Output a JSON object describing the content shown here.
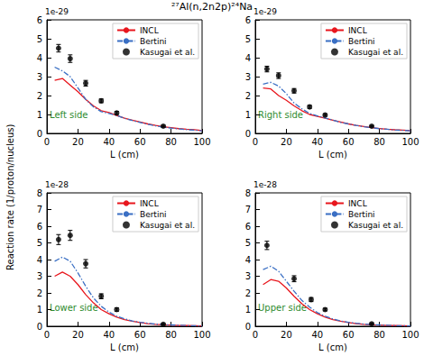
{
  "figure": {
    "title": "²⁷Al(n,2n2p)²⁴Na",
    "ylabel": "Reaction rate (1/proton/nucleus)"
  },
  "chart_data": [
    {
      "type": "line",
      "annotation": "Left side",
      "y_multiplier": "1e-29",
      "xlabel": "L (cm)",
      "xlim": [
        0,
        100
      ],
      "xticks": [
        0,
        20,
        40,
        60,
        80,
        100
      ],
      "ylim": [
        0,
        6
      ],
      "yticks": [
        0,
        1,
        2,
        3,
        4,
        5,
        6
      ],
      "legend": "upper right",
      "series": [
        {
          "name": "INCL",
          "color": "#e8161d",
          "line_style": "solid",
          "marker": "none",
          "x": [
            5,
            10,
            15,
            20,
            25,
            30,
            35,
            40,
            45,
            50,
            55,
            60,
            65,
            70,
            75,
            80,
            85,
            90,
            95,
            100
          ],
          "values": [
            2.8,
            2.9,
            2.55,
            2.2,
            1.8,
            1.45,
            1.2,
            1.1,
            0.95,
            0.8,
            0.7,
            0.6,
            0.5,
            0.42,
            0.35,
            0.3,
            0.25,
            0.22,
            0.2,
            0.15
          ]
        },
        {
          "name": "Bertini",
          "color": "#3a6fc4",
          "line_style": "dashdot",
          "marker": "none",
          "x": [
            5,
            10,
            15,
            20,
            25,
            30,
            35,
            40,
            45,
            50,
            55,
            60,
            65,
            70,
            75,
            80,
            85,
            90,
            95,
            100
          ],
          "values": [
            3.5,
            3.3,
            3.0,
            2.4,
            1.8,
            1.4,
            1.15,
            1.05,
            0.95,
            0.8,
            0.68,
            0.58,
            0.48,
            0.4,
            0.33,
            0.28,
            0.24,
            0.2,
            0.17,
            0.14
          ]
        },
        {
          "name": "Kasugai et al.",
          "color": "#000000",
          "line_style": "none",
          "marker": "circle",
          "x": [
            7.5,
            15,
            25,
            35,
            45,
            75
          ],
          "values": [
            4.5,
            3.95,
            2.65,
            1.72,
            1.08,
            0.38
          ],
          "errors": [
            0.2,
            0.2,
            0.15,
            0.1,
            0.08,
            0.05
          ]
        }
      ]
    },
    {
      "type": "line",
      "annotation": "Right side",
      "y_multiplier": "1e-29",
      "xlabel": "L (cm)",
      "xlim": [
        0,
        100
      ],
      "xticks": [
        0,
        20,
        40,
        60,
        80,
        100
      ],
      "ylim": [
        0,
        6
      ],
      "yticks": [
        0,
        1,
        2,
        3,
        4,
        5,
        6
      ],
      "legend": "upper right",
      "series": [
        {
          "name": "INCL",
          "color": "#e8161d",
          "line_style": "solid",
          "marker": "none",
          "x": [
            5,
            10,
            15,
            20,
            25,
            30,
            35,
            40,
            45,
            50,
            55,
            60,
            65,
            70,
            75,
            80,
            85,
            90,
            95,
            100
          ],
          "values": [
            2.4,
            2.35,
            2.0,
            1.75,
            1.45,
            1.2,
            1.0,
            0.9,
            0.8,
            0.7,
            0.6,
            0.5,
            0.42,
            0.36,
            0.3,
            0.26,
            0.22,
            0.19,
            0.17,
            0.15
          ]
        },
        {
          "name": "Bertini",
          "color": "#3a6fc4",
          "line_style": "dashdot",
          "marker": "none",
          "x": [
            5,
            10,
            15,
            20,
            25,
            30,
            35,
            40,
            45,
            50,
            55,
            60,
            65,
            70,
            75,
            80,
            85,
            90,
            95,
            100
          ],
          "values": [
            2.6,
            2.7,
            2.5,
            2.1,
            1.6,
            1.3,
            1.05,
            0.92,
            0.82,
            0.7,
            0.58,
            0.5,
            0.42,
            0.35,
            0.3,
            0.25,
            0.22,
            0.18,
            0.16,
            0.14
          ]
        },
        {
          "name": "Kasugai et al.",
          "color": "#000000",
          "line_style": "none",
          "marker": "circle",
          "x": [
            7.5,
            15,
            25,
            35,
            45,
            75
          ],
          "values": [
            3.4,
            3.05,
            2.25,
            1.4,
            0.97,
            0.38
          ],
          "errors": [
            0.15,
            0.15,
            0.12,
            0.08,
            0.06,
            0.04
          ]
        }
      ]
    },
    {
      "type": "line",
      "annotation": "Lower side",
      "y_multiplier": "1e-28",
      "xlabel": "L (cm)",
      "xlim": [
        0,
        100
      ],
      "xticks": [
        0,
        20,
        40,
        60,
        80,
        100
      ],
      "ylim": [
        0,
        8
      ],
      "yticks": [
        0,
        1,
        2,
        3,
        4,
        5,
        6,
        7,
        8
      ],
      "legend": "upper right",
      "series": [
        {
          "name": "INCL",
          "color": "#e8161d",
          "line_style": "solid",
          "marker": "none",
          "x": [
            5,
            10,
            15,
            20,
            25,
            30,
            35,
            40,
            45,
            50,
            55,
            60,
            65,
            70,
            75,
            80,
            85,
            90,
            95,
            100
          ],
          "values": [
            3.0,
            3.25,
            3.0,
            2.5,
            1.9,
            1.4,
            1.0,
            0.75,
            0.55,
            0.4,
            0.3,
            0.22,
            0.16,
            0.12,
            0.09,
            0.07,
            0.05,
            0.04,
            0.03,
            0.02
          ]
        },
        {
          "name": "Bertini",
          "color": "#3a6fc4",
          "line_style": "dashdot",
          "marker": "none",
          "x": [
            5,
            10,
            15,
            20,
            25,
            30,
            35,
            40,
            45,
            50,
            55,
            60,
            65,
            70,
            75,
            80,
            85,
            90,
            95,
            100
          ],
          "values": [
            3.9,
            4.15,
            3.9,
            3.2,
            2.4,
            1.7,
            1.2,
            0.85,
            0.6,
            0.45,
            0.32,
            0.24,
            0.18,
            0.13,
            0.1,
            0.08,
            0.06,
            0.04,
            0.03,
            0.02
          ]
        },
        {
          "name": "Kasugai et al.",
          "color": "#000000",
          "line_style": "none",
          "marker": "circle",
          "x": [
            7.5,
            15,
            25,
            35,
            45,
            75
          ],
          "values": [
            5.2,
            5.45,
            3.75,
            1.8,
            1.0,
            0.12
          ],
          "errors": [
            0.3,
            0.3,
            0.25,
            0.15,
            0.1,
            0.05
          ]
        }
      ]
    },
    {
      "type": "line",
      "annotation": "Upper side",
      "y_multiplier": "1e-28",
      "xlabel": "L (cm)",
      "xlim": [
        0,
        100
      ],
      "xticks": [
        0,
        20,
        40,
        60,
        80,
        100
      ],
      "ylim": [
        0,
        8
      ],
      "yticks": [
        0,
        1,
        2,
        3,
        4,
        5,
        6,
        7,
        8
      ],
      "legend": "upper right",
      "series": [
        {
          "name": "INCL",
          "color": "#e8161d",
          "line_style": "solid",
          "marker": "none",
          "x": [
            5,
            10,
            15,
            20,
            25,
            30,
            35,
            40,
            45,
            50,
            55,
            60,
            65,
            70,
            75,
            80,
            85,
            90,
            95,
            100
          ],
          "values": [
            2.5,
            2.8,
            2.7,
            2.3,
            1.8,
            1.35,
            1.0,
            0.75,
            0.55,
            0.4,
            0.3,
            0.22,
            0.16,
            0.12,
            0.09,
            0.07,
            0.05,
            0.04,
            0.03,
            0.02
          ]
        },
        {
          "name": "Bertini",
          "color": "#3a6fc4",
          "line_style": "dashdot",
          "marker": "none",
          "x": [
            5,
            10,
            15,
            20,
            25,
            30,
            35,
            40,
            45,
            50,
            55,
            60,
            65,
            70,
            75,
            80,
            85,
            90,
            95,
            100
          ],
          "values": [
            3.4,
            3.6,
            3.3,
            2.7,
            2.1,
            1.55,
            1.15,
            0.82,
            0.6,
            0.44,
            0.32,
            0.24,
            0.18,
            0.13,
            0.1,
            0.08,
            0.06,
            0.04,
            0.03,
            0.02
          ]
        },
        {
          "name": "Kasugai et al.",
          "color": "#000000",
          "line_style": "none",
          "marker": "circle",
          "x": [
            7.5,
            25,
            36,
            45,
            75
          ],
          "values": [
            4.85,
            2.85,
            1.6,
            1.0,
            0.15
          ],
          "errors": [
            0.25,
            0.18,
            0.12,
            0.08,
            0.05
          ]
        }
      ]
    }
  ]
}
